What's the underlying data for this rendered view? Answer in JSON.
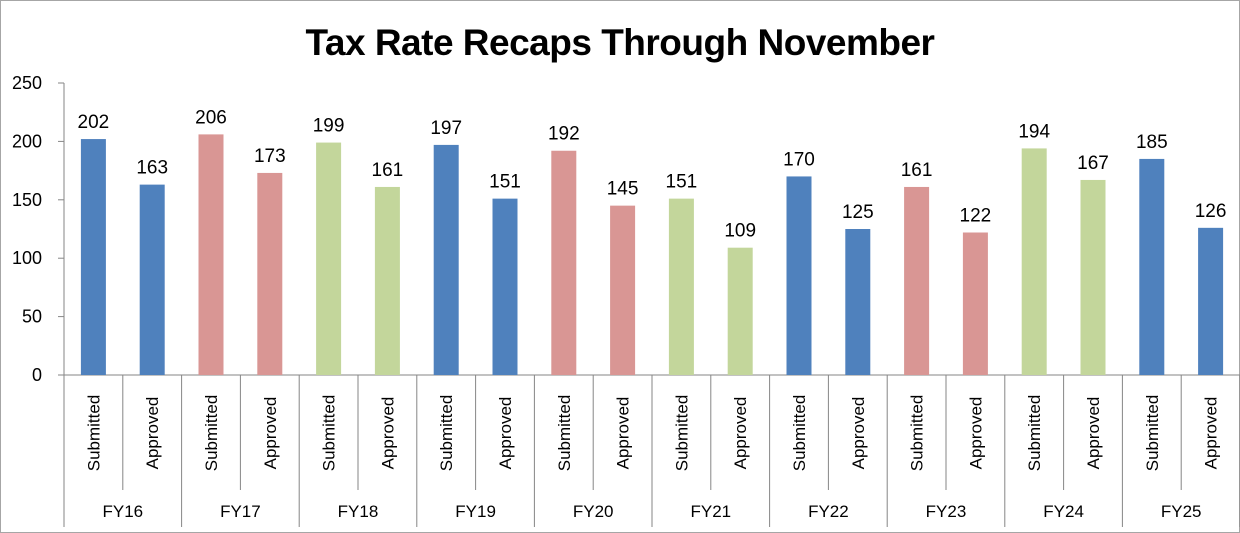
{
  "chart_data": {
    "type": "bar",
    "title": "Tax Rate Recaps Through November",
    "xlabel": "",
    "ylabel": "",
    "ylim": [
      0,
      250
    ],
    "yticks": [
      0,
      50,
      100,
      150,
      200,
      250
    ],
    "grid": false,
    "legend": "none",
    "groups": [
      "FY16",
      "FY17",
      "FY18",
      "FY19",
      "FY20",
      "FY21",
      "FY22",
      "FY23",
      "FY24",
      "FY25"
    ],
    "subcategories": [
      "Submitted",
      "Approved"
    ],
    "values": [
      [
        202,
        163
      ],
      [
        206,
        173
      ],
      [
        199,
        161
      ],
      [
        197,
        151
      ],
      [
        192,
        145
      ],
      [
        151,
        109
      ],
      [
        170,
        125
      ],
      [
        161,
        122
      ],
      [
        194,
        167
      ],
      [
        185,
        126
      ]
    ],
    "group_colors": [
      "#4f81bd",
      "#d99694",
      "#c3d69b",
      "#4f81bd",
      "#d99694",
      "#c3d69b",
      "#4f81bd",
      "#d99694",
      "#c3d69b",
      "#4f81bd"
    ]
  }
}
